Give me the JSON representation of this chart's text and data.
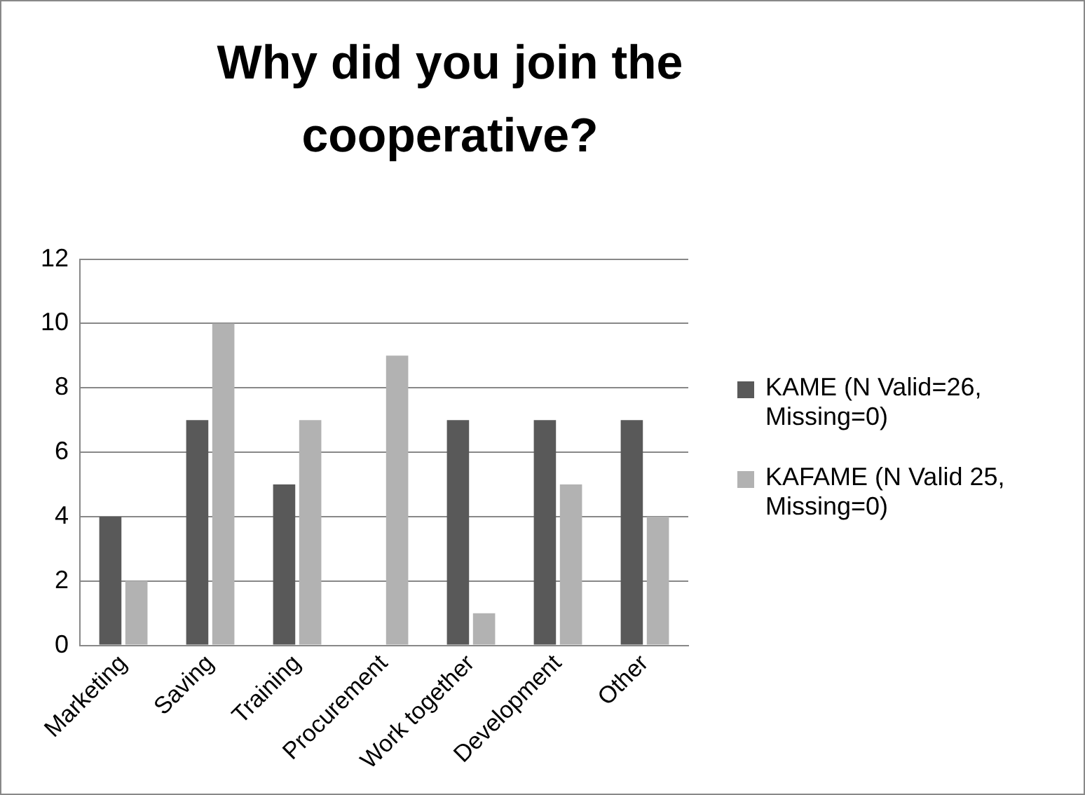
{
  "chart_data": {
    "type": "bar",
    "title": "Why did you join the cooperative?",
    "categories": [
      "Marketing",
      "Saving",
      "Training",
      "Procurement",
      "Work together",
      "Development",
      "Other"
    ],
    "series": [
      {
        "name": "KAME (N Valid=26, Missing=0)",
        "color": "#595959",
        "values": [
          4,
          7,
          5,
          0,
          7,
          7,
          7
        ]
      },
      {
        "name": "KAFAME (N Valid 25, Missing=0)",
        "color": "#b2b2b2",
        "values": [
          2,
          10,
          7,
          9,
          1,
          5,
          4
        ]
      }
    ],
    "ylim": [
      0,
      12
    ],
    "yticks": [
      0,
      2,
      4,
      6,
      8,
      10,
      12
    ],
    "grid": "y",
    "legend": "right"
  }
}
